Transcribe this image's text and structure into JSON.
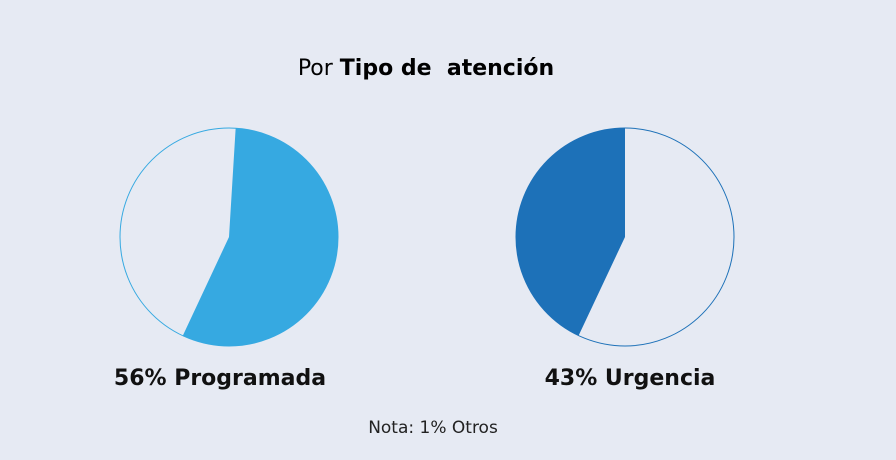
{
  "title": {
    "prefix": "Por ",
    "bold": "Tipo de  atención"
  },
  "chart_data": [
    {
      "type": "pie",
      "title": "",
      "label": "56% Programada",
      "slices": [
        {
          "name": "Programada",
          "value": 56,
          "color": "#36a9e1"
        },
        {
          "name": "",
          "value": 44,
          "color": "#e6eaf3"
        }
      ]
    },
    {
      "type": "pie",
      "title": "",
      "label": "43% Urgencia",
      "slices": [
        {
          "name": "Urgencia",
          "value": 43,
          "color": "#1d71b8"
        },
        {
          "name": "",
          "value": 57,
          "color": "#e6eaf3"
        }
      ]
    }
  ],
  "note": "Nota: 1% Otros",
  "colors": {
    "background": "#e6eaf3",
    "outline_1": "#36a9e1",
    "outline_2": "#1d71b8"
  }
}
